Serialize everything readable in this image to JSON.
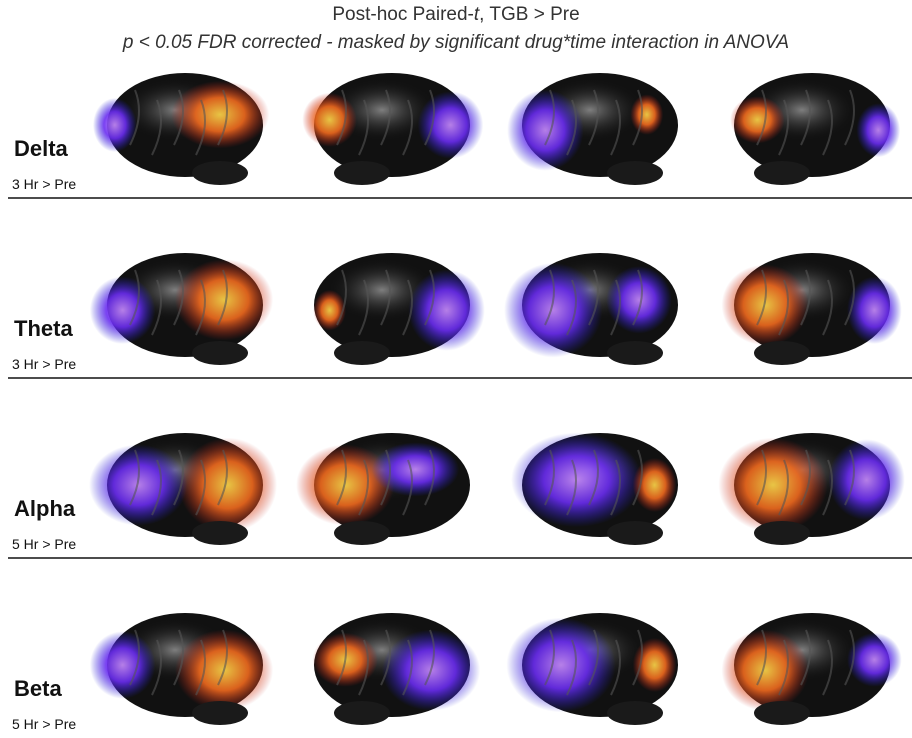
{
  "header": {
    "title_parts": [
      "Post-hoc Paired-",
      "t",
      ", TGB > Pre"
    ],
    "subtitle": "p < 0.05 FDR corrected - masked by significant drug*time interaction in ANOVA"
  },
  "rows": [
    {
      "band": "Delta",
      "contrast": "3 Hr > Pre"
    },
    {
      "band": "Theta",
      "contrast": "3 Hr > Pre"
    },
    {
      "band": "Alpha",
      "contrast": "5 Hr > Pre"
    },
    {
      "band": "Beta",
      "contrast": "5 Hr > Pre"
    }
  ]
}
